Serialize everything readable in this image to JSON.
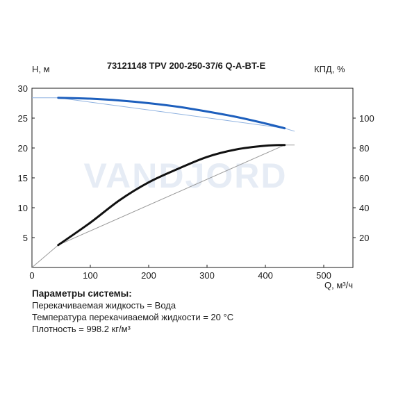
{
  "chart_data": {
    "type": "line",
    "title": "73121148 TPV 200-250-37/6 Q-A-BT-E",
    "xlabel": "Q, м³/ч",
    "ylabel_left": "H, м",
    "ylabel_right": "КПД, %",
    "xlim": [
      0,
      550
    ],
    "ylim_left": [
      0,
      30
    ],
    "ylim_right": [
      0,
      120
    ],
    "x_ticks": [
      "0",
      "100",
      "200",
      "300",
      "400",
      "500"
    ],
    "y_ticks_left": [
      "5",
      "10",
      "15",
      "20",
      "25",
      "30"
    ],
    "y_ticks_right": [
      "20",
      "40",
      "60",
      "80",
      "100"
    ],
    "grid": false,
    "watermark": "VANDJORD",
    "series": [
      {
        "axis": "left",
        "color": "#1d5fbd",
        "extrapolated_x": [
          0,
          45,
          433,
          450
        ],
        "extrapolated_y": [
          28.4,
          28.4,
          23.3,
          22.8
        ],
        "x": [
          45,
          100,
          150,
          200,
          250,
          300,
          350,
          400,
          433
        ],
        "y": [
          28.4,
          28.25,
          27.95,
          27.5,
          26.9,
          26.1,
          25.2,
          24.1,
          23.3
        ]
      },
      {
        "axis": "right",
        "color": "#111111",
        "extrapolated_x": [
          0,
          45,
          433,
          450
        ],
        "extrapolated_y": [
          0,
          15,
          82,
          82
        ],
        "x": [
          45,
          100,
          150,
          200,
          250,
          300,
          350,
          400,
          433
        ],
        "y": [
          15,
          30,
          45,
          57,
          66,
          74,
          79,
          81.5,
          82
        ]
      }
    ]
  },
  "params": {
    "heading": "Параметры системы:",
    "fluid": "Перекачиваемая жидкость = Вода",
    "temperature": "Температура перекачиваемой жидкости = 20 °С",
    "density": "Плотность = 998.2 кг/м³"
  }
}
